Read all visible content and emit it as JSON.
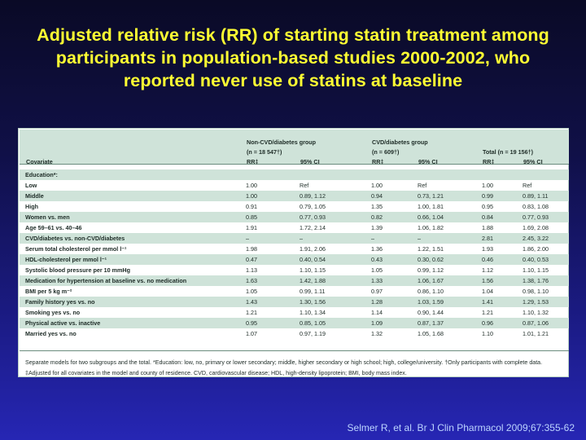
{
  "title": {
    "line1": "Adjusted relative risk (RR) of starting statin treatment among",
    "line2": "participants in population-based studies 2000-2002, who",
    "line3": "reported never use of statins at baseline"
  },
  "table": {
    "header": {
      "covariate": "Covariate",
      "group1_name": "Non-CVD/diabetes group",
      "group1_n": "(n = 18 547†)",
      "group2_name": "CVD/diabetes group",
      "group2_n": "(n = 609†)",
      "group3_n": "Total (n = 19 156†)",
      "rr": "RR‡",
      "ci": "95% CI"
    },
    "rows": [
      {
        "cov": "Education*:",
        "g1rr": "",
        "g1ci": "",
        "g2rr": "",
        "g2ci": "",
        "g3rr": "",
        "g3ci": ""
      },
      {
        "cov": "Low",
        "g1rr": "1.00",
        "g1ci": "Ref",
        "g2rr": "1.00",
        "g2ci": "Ref",
        "g3rr": "1.00",
        "g3ci": "Ref"
      },
      {
        "cov": "Middle",
        "g1rr": "1.00",
        "g1ci": "0.89, 1.12",
        "g2rr": "0.94",
        "g2ci": "0.73, 1.21",
        "g3rr": "0.99",
        "g3ci": "0.89, 1.11"
      },
      {
        "cov": "High",
        "g1rr": "0.91",
        "g1ci": "0.79, 1.05",
        "g2rr": "1.35",
        "g2ci": "1.00, 1.81",
        "g3rr": "0.95",
        "g3ci": "0.83, 1.08"
      },
      {
        "cov": "Women vs. men",
        "g1rr": "0.85",
        "g1ci": "0.77, 0.93",
        "g2rr": "0.82",
        "g2ci": "0.66, 1.04",
        "g3rr": "0.84",
        "g3ci": "0.77, 0.93"
      },
      {
        "cov": "Age 59–61 vs. 40–46",
        "g1rr": "1.91",
        "g1ci": "1.72, 2.14",
        "g2rr": "1.39",
        "g2ci": "1.06, 1.82",
        "g3rr": "1.88",
        "g3ci": "1.69, 2.08"
      },
      {
        "cov": "CVD/diabetes vs. non-CVD/diabetes",
        "g1rr": "–",
        "g1ci": "–",
        "g2rr": "–",
        "g2ci": "–",
        "g3rr": "2.81",
        "g3ci": "2.45, 3.22"
      },
      {
        "cov": "Serum total cholesterol per mmol l⁻¹",
        "g1rr": "1.98",
        "g1ci": "1.91, 2.06",
        "g2rr": "1.36",
        "g2ci": "1.22, 1.51",
        "g3rr": "1.93",
        "g3ci": "1.86, 2.00"
      },
      {
        "cov": "HDL-cholesterol per mmol l⁻¹",
        "g1rr": "0.47",
        "g1ci": "0.40, 0.54",
        "g2rr": "0.43",
        "g2ci": "0.30, 0.62",
        "g3rr": "0.46",
        "g3ci": "0.40, 0.53"
      },
      {
        "cov": "Systolic blood pressure per 10 mmHg",
        "g1rr": "1.13",
        "g1ci": "1.10, 1.15",
        "g2rr": "1.05",
        "g2ci": "0.99, 1.12",
        "g3rr": "1.12",
        "g3ci": "1.10, 1.15"
      },
      {
        "cov": "Medication for hypertension at baseline vs. no medication",
        "g1rr": "1.63",
        "g1ci": "1.42, 1.88",
        "g2rr": "1.33",
        "g2ci": "1.06, 1.67",
        "g3rr": "1.56",
        "g3ci": "1.38, 1.76"
      },
      {
        "cov": "BMI per 5 kg m⁻²",
        "g1rr": "1.05",
        "g1ci": "0.99, 1.11",
        "g2rr": "0.97",
        "g2ci": "0.86, 1.10",
        "g3rr": "1.04",
        "g3ci": "0.98, 1.10"
      },
      {
        "cov": "Family history yes vs. no",
        "g1rr": "1.43",
        "g1ci": "1.30, 1.56",
        "g2rr": "1.28",
        "g2ci": "1.03, 1.59",
        "g3rr": "1.41",
        "g3ci": "1.29, 1.53"
      },
      {
        "cov": "Smoking yes vs. no",
        "g1rr": "1.21",
        "g1ci": "1.10, 1.34",
        "g2rr": "1.14",
        "g2ci": "0.90, 1.44",
        "g3rr": "1.21",
        "g3ci": "1.10, 1.32"
      },
      {
        "cov": "Physical active vs. inactive",
        "g1rr": "0.95",
        "g1ci": "0.85, 1.05",
        "g2rr": "1.09",
        "g2ci": "0.87, 1.37",
        "g3rr": "0.96",
        "g3ci": "0.87, 1.06"
      },
      {
        "cov": "Married yes vs. no",
        "g1rr": "1.07",
        "g1ci": "0.97, 1.19",
        "g2rr": "1.32",
        "g2ci": "1.05, 1.68",
        "g3rr": "1.10",
        "g3ci": "1.01, 1.21"
      }
    ],
    "footnote": "Separate models for two subgroups and the total. *Education: low, no, primary or lower secondary; middle, higher secondary or high school; high, college/university. †Only participants with complete data. ‡Adjusted for all covariates in the model and county of residence. CVD, cardiovascular disease; HDL, high-density lipoprotein; BMI, body mass index."
  },
  "citation": "Selmer R, et al. Br J Clin Pharmacol 2009;67:355-62"
}
